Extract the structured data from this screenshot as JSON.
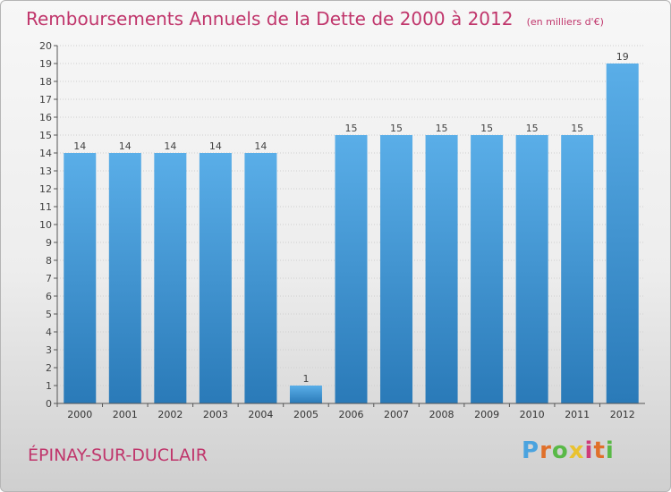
{
  "title": "Remboursements Annuels de la Dette de 2000 à 2012",
  "unit": "(en milliers d'€)",
  "commune": "ÉPINAY-SUR-DUCLAIR",
  "logo": {
    "text": "Proxiti"
  },
  "colors": {
    "bar_light": "#5aaee8",
    "bar_dark": "#2a7ab8",
    "title": "#c0356b"
  },
  "chart_data": {
    "type": "bar",
    "title": "Remboursements Annuels de la Dette de 2000 à 2012",
    "xlabel": "",
    "ylabel": "",
    "categories": [
      "2000",
      "2001",
      "2002",
      "2003",
      "2004",
      "2005",
      "2006",
      "2007",
      "2008",
      "2009",
      "2010",
      "2011",
      "2012"
    ],
    "values": [
      14,
      14,
      14,
      14,
      14,
      1,
      15,
      15,
      15,
      15,
      15,
      15,
      19
    ],
    "ylim": [
      0,
      20
    ],
    "yticks": [
      0,
      1,
      2,
      3,
      4,
      5,
      6,
      7,
      8,
      9,
      10,
      11,
      12,
      13,
      14,
      15,
      16,
      17,
      18,
      19,
      20
    ],
    "grid": true
  }
}
